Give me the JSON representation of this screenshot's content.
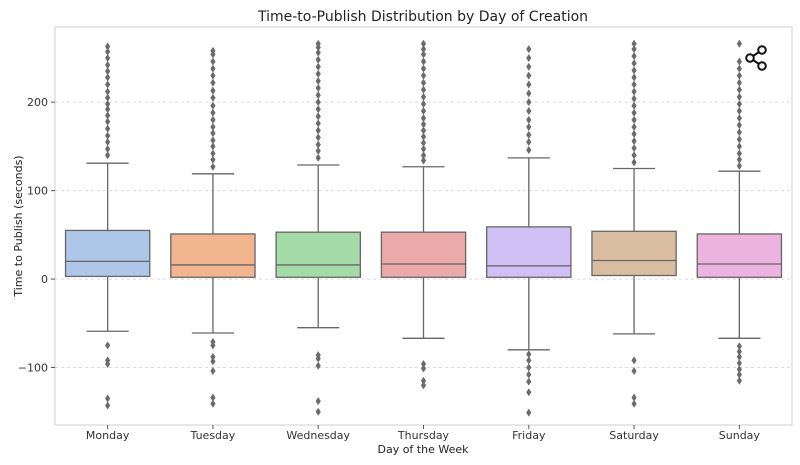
{
  "chart_data": {
    "type": "box",
    "title": "Time-to-Publish Distribution by Day of Creation",
    "xlabel": "Day of the Week",
    "ylabel": "Time to Publish (seconds)",
    "ylim": [
      -165,
      285
    ],
    "yticks": [
      -100,
      0,
      100,
      200
    ],
    "grid": true,
    "categories": [
      "Monday",
      "Tuesday",
      "Wednesday",
      "Thursday",
      "Friday",
      "Saturday",
      "Sunday"
    ],
    "boxes": [
      {
        "category": "Monday",
        "color": "#aec7e8",
        "whisker_low": -59,
        "q1": 3,
        "median": 20,
        "q3": 55,
        "whisker_high": 131,
        "outliers": [
          140,
          147,
          155,
          162,
          170,
          178,
          185,
          192,
          198,
          205,
          212,
          220,
          228,
          235,
          242,
          250,
          257,
          263,
          -75,
          -92,
          -96,
          -135,
          -143
        ]
      },
      {
        "category": "Tuesday",
        "color": "#f2b58f",
        "whisker_low": -61,
        "q1": 2,
        "median": 16,
        "q3": 51,
        "whisker_high": 119,
        "outliers": [
          127,
          135,
          142,
          150,
          157,
          165,
          172,
          180,
          188,
          196,
          205,
          213,
          222,
          230,
          238,
          246,
          254,
          258,
          -71,
          -75,
          -88,
          -93,
          -104,
          -134,
          -141
        ]
      },
      {
        "category": "Wednesday",
        "color": "#a5dba9",
        "whisker_low": -55,
        "q1": 2,
        "median": 16,
        "q3": 53,
        "whisker_high": 129,
        "outliers": [
          137,
          145,
          152,
          160,
          168,
          176,
          184,
          192,
          200,
          208,
          216,
          224,
          232,
          240,
          248,
          256,
          262,
          266,
          -86,
          -90,
          -98,
          -138,
          -150
        ]
      },
      {
        "category": "Thursday",
        "color": "#eba9a9",
        "whisker_low": -67,
        "q1": 2,
        "median": 17,
        "q3": 53,
        "whisker_high": 127,
        "outliers": [
          134,
          140,
          147,
          154,
          161,
          168,
          175,
          182,
          190,
          198,
          206,
          214,
          222,
          230,
          238,
          246,
          254,
          260,
          266,
          -96,
          -101,
          -115,
          -120
        ]
      },
      {
        "category": "Friday",
        "color": "#d0c0f5",
        "whisker_low": -80,
        "q1": 2,
        "median": 15,
        "q3": 59,
        "whisker_high": 137,
        "outliers": [
          146,
          155,
          163,
          172,
          180,
          190,
          200,
          210,
          220,
          230,
          240,
          250,
          260,
          -85,
          -92,
          -100,
          -108,
          -116,
          -128,
          -151
        ]
      },
      {
        "category": "Saturday",
        "color": "#d8bda0",
        "whisker_low": -62,
        "q1": 4,
        "median": 21,
        "q3": 54,
        "whisker_high": 125,
        "outliers": [
          132,
          140,
          148,
          156,
          164,
          172,
          180,
          188,
          196,
          204,
          212,
          220,
          228,
          236,
          244,
          252,
          260,
          266,
          -92,
          -104,
          -134,
          -141
        ]
      },
      {
        "category": "Sunday",
        "color": "#ebb3dd",
        "whisker_low": -67,
        "q1": 2,
        "median": 17,
        "q3": 51,
        "whisker_high": 122,
        "outliers": [
          128,
          135,
          142,
          150,
          158,
          166,
          174,
          182,
          190,
          198,
          206,
          214,
          222,
          230,
          238,
          246,
          266,
          -76,
          -82,
          -88,
          -95,
          -102,
          -108,
          -115
        ]
      }
    ]
  },
  "toolbar": {
    "share_icon": "share-icon"
  }
}
